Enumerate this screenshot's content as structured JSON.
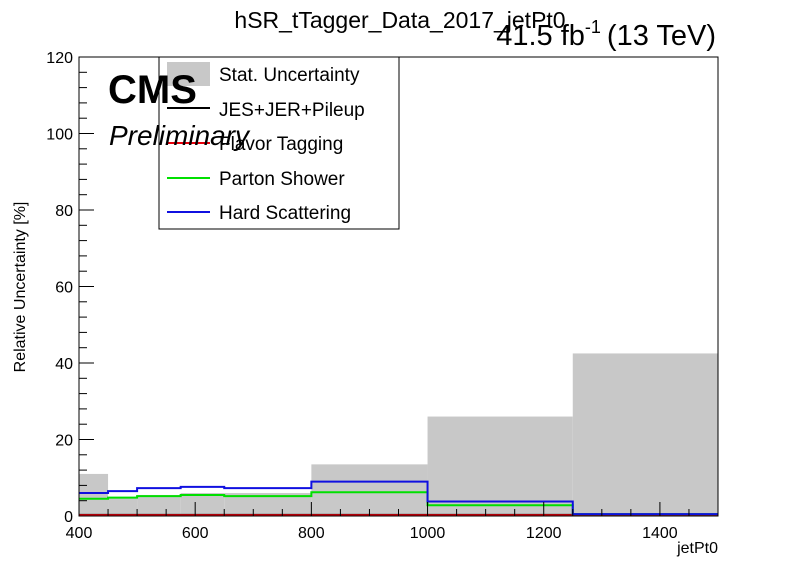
{
  "chart_data": {
    "type": "histogram",
    "title": "hSR_tTagger_Data_2017_jetPt0",
    "lumi_label": "41.5 fb",
    "lumi_sup": "-1",
    "energy_label": "(13 TeV)",
    "cms_label": "CMS",
    "preliminary_label": "Preliminary",
    "xlabel": "jetPt0",
    "ylabel": "Relative Uncertainty [%]",
    "xlim": [
      400,
      1500
    ],
    "ylim": [
      0,
      120
    ],
    "xticks": [
      400,
      600,
      800,
      1000,
      1200,
      1400
    ],
    "yticks": [
      0,
      20,
      40,
      60,
      80,
      100,
      120
    ],
    "bin_edges": [
      400,
      450,
      500,
      575,
      650,
      800,
      1000,
      1250,
      1500
    ],
    "legend_position": "top-left",
    "series": [
      {
        "name": "Stat. Uncertainty",
        "style": "fill",
        "color": "#c8c8c8",
        "values": [
          11.0,
          5.0,
          5.5,
          6.0,
          6.0,
          13.5,
          26.0,
          42.5
        ]
      },
      {
        "name": "JES+JER+Pileup",
        "style": "line",
        "color": "#000000",
        "values": [
          0.3,
          0.3,
          0.3,
          0.3,
          0.3,
          0.3,
          0.3,
          0.3
        ]
      },
      {
        "name": "Flavor Tagging",
        "style": "line",
        "color": "#e8000b",
        "values": [
          0.2,
          0.2,
          0.2,
          0.2,
          0.2,
          0.2,
          0.2,
          0.2
        ]
      },
      {
        "name": "Parton Shower",
        "style": "line",
        "color": "#00e000",
        "values": [
          4.5,
          4.8,
          5.2,
          5.5,
          5.2,
          6.2,
          2.8,
          0.5
        ]
      },
      {
        "name": "Hard Scattering",
        "style": "line",
        "color": "#1010e0",
        "values": [
          6.0,
          6.5,
          7.3,
          7.6,
          7.3,
          9.0,
          3.8,
          0.5
        ]
      }
    ]
  }
}
